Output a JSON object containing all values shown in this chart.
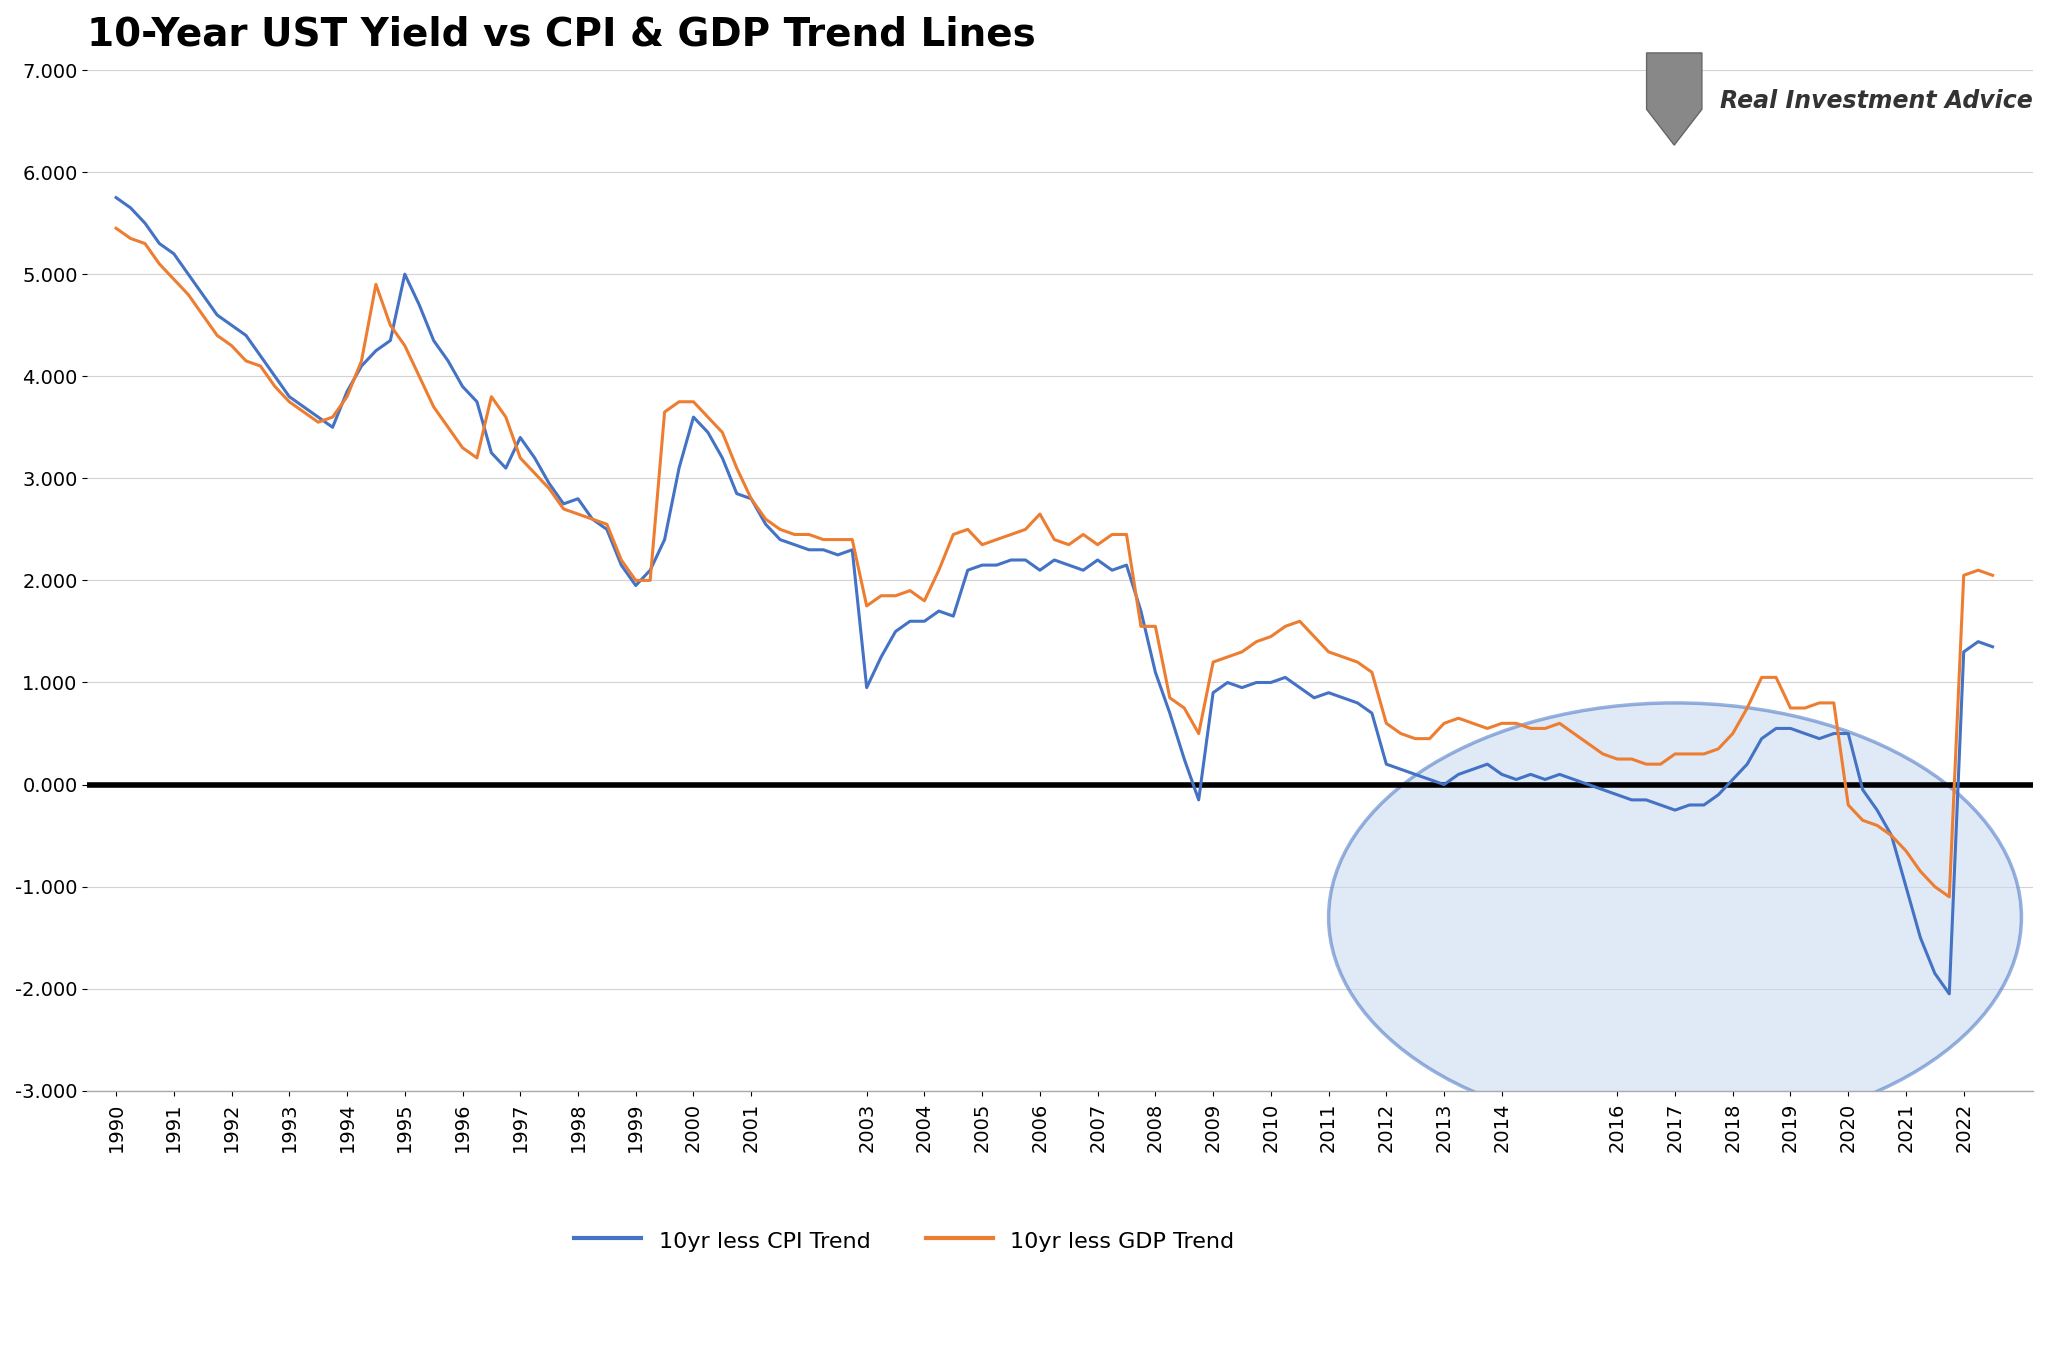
{
  "title": "10-Year UST Yield vs CPI & GDP Trend Lines",
  "legend_cpi": "10yr less CPI Trend",
  "legend_gdp": "10yr less GDP Trend",
  "color_cpi": "#4472C4",
  "color_gdp": "#ED7D31",
  "color_zero_line": "#000000",
  "background_color": "#FFFFFF",
  "grid_color": "#D3D3D3",
  "ylim": [
    -3.0,
    7.0
  ],
  "yticks": [
    -3.0,
    -2.0,
    -1.0,
    0.0,
    1.0,
    2.0,
    3.0,
    4.0,
    5.0,
    6.0,
    7.0
  ],
  "ellipse_color": "#C8D8F0",
  "ellipse_edge": "#4472C4",
  "xtick_labels": [
    "1990",
    "1991",
    "1992",
    "1993",
    "1994",
    "1995",
    "1996",
    "1997",
    "1998",
    "1999",
    "2000",
    "2001",
    "2003",
    "2004",
    "2005",
    "2006",
    "2007",
    "2008",
    "2009",
    "2010",
    "2011",
    "2012",
    "2013",
    "2014",
    "2016",
    "2017",
    "2018",
    "2019",
    "2020",
    "2021",
    "2022"
  ],
  "xtick_values": [
    1990,
    1991,
    1992,
    1993,
    1994,
    1995,
    1996,
    1997,
    1998,
    1999,
    2000,
    2001,
    2003,
    2004,
    2005,
    2006,
    2007,
    2008,
    2009,
    2010,
    2011,
    2012,
    2013,
    2014,
    2016,
    2017,
    2018,
    2019,
    2020,
    2021,
    2022
  ],
  "cpi_x": [
    1990.0,
    1990.25,
    1990.5,
    1990.75,
    1991.0,
    1991.25,
    1991.5,
    1991.75,
    1992.0,
    1992.25,
    1992.5,
    1992.75,
    1993.0,
    1993.25,
    1993.5,
    1993.75,
    1994.0,
    1994.25,
    1994.5,
    1994.75,
    1995.0,
    1995.25,
    1995.5,
    1995.75,
    1996.0,
    1996.25,
    1996.5,
    1996.75,
    1997.0,
    1997.25,
    1997.5,
    1997.75,
    1998.0,
    1998.25,
    1998.5,
    1998.75,
    1999.0,
    1999.25,
    1999.5,
    1999.75,
    2000.0,
    2000.25,
    2000.5,
    2000.75,
    2001.0,
    2001.25,
    2001.5,
    2001.75,
    2002.0,
    2002.25,
    2002.5,
    2002.75,
    2003.0,
    2003.25,
    2003.5,
    2003.75,
    2004.0,
    2004.25,
    2004.5,
    2004.75,
    2005.0,
    2005.25,
    2005.5,
    2005.75,
    2006.0,
    2006.25,
    2006.5,
    2006.75,
    2007.0,
    2007.25,
    2007.5,
    2007.75,
    2008.0,
    2008.25,
    2008.5,
    2008.75,
    2009.0,
    2009.25,
    2009.5,
    2009.75,
    2010.0,
    2010.25,
    2010.5,
    2010.75,
    2011.0,
    2011.25,
    2011.5,
    2011.75,
    2012.0,
    2012.25,
    2012.5,
    2012.75,
    2013.0,
    2013.25,
    2013.5,
    2013.75,
    2014.0,
    2014.25,
    2014.5,
    2014.75,
    2015.0,
    2015.25,
    2015.5,
    2015.75,
    2016.0,
    2016.25,
    2016.5,
    2016.75,
    2017.0,
    2017.25,
    2017.5,
    2017.75,
    2018.0,
    2018.25,
    2018.5,
    2018.75,
    2019.0,
    2019.25,
    2019.5,
    2019.75,
    2020.0,
    2020.25,
    2020.5,
    2020.75,
    2021.0,
    2021.25,
    2021.5,
    2021.75,
    2022.0,
    2022.25,
    2022.5
  ],
  "cpi_y": [
    5.75,
    5.65,
    5.5,
    5.3,
    5.2,
    5.0,
    4.8,
    4.6,
    4.5,
    4.4,
    4.2,
    4.0,
    3.8,
    3.7,
    3.6,
    3.5,
    3.85,
    4.1,
    4.25,
    4.35,
    5.0,
    4.7,
    4.35,
    4.15,
    3.9,
    3.75,
    3.25,
    3.1,
    3.4,
    3.2,
    2.95,
    2.75,
    2.8,
    2.6,
    2.5,
    2.15,
    1.95,
    2.1,
    2.4,
    3.1,
    3.6,
    3.45,
    3.2,
    2.85,
    2.8,
    2.55,
    2.4,
    2.35,
    2.3,
    2.3,
    2.25,
    2.3,
    0.95,
    1.25,
    1.5,
    1.6,
    1.6,
    1.7,
    1.65,
    2.1,
    2.15,
    2.15,
    2.2,
    2.2,
    2.1,
    2.2,
    2.15,
    2.1,
    2.2,
    2.1,
    2.15,
    1.7,
    1.1,
    0.7,
    0.25,
    -0.15,
    0.9,
    1.0,
    0.95,
    1.0,
    1.0,
    1.05,
    0.95,
    0.85,
    0.9,
    0.85,
    0.8,
    0.7,
    0.2,
    0.15,
    0.1,
    0.05,
    0.0,
    0.1,
    0.15,
    0.2,
    0.1,
    0.05,
    0.1,
    0.05,
    0.1,
    0.05,
    0.0,
    -0.05,
    -0.1,
    -0.15,
    -0.15,
    -0.2,
    -0.25,
    -0.2,
    -0.2,
    -0.1,
    0.05,
    0.2,
    0.45,
    0.55,
    0.55,
    0.5,
    0.45,
    0.5,
    0.5,
    -0.05,
    -0.25,
    -0.5,
    -1.0,
    -1.5,
    -1.85,
    -2.05,
    1.3,
    1.4,
    1.35
  ],
  "gdp_x": [
    1990.0,
    1990.25,
    1990.5,
    1990.75,
    1991.0,
    1991.25,
    1991.5,
    1991.75,
    1992.0,
    1992.25,
    1992.5,
    1992.75,
    1993.0,
    1993.25,
    1993.5,
    1993.75,
    1994.0,
    1994.25,
    1994.5,
    1994.75,
    1995.0,
    1995.25,
    1995.5,
    1995.75,
    1996.0,
    1996.25,
    1996.5,
    1996.75,
    1997.0,
    1997.25,
    1997.5,
    1997.75,
    1998.0,
    1998.25,
    1998.5,
    1998.75,
    1999.0,
    1999.25,
    1999.5,
    1999.75,
    2000.0,
    2000.25,
    2000.5,
    2000.75,
    2001.0,
    2001.25,
    2001.5,
    2001.75,
    2002.0,
    2002.25,
    2002.5,
    2002.75,
    2003.0,
    2003.25,
    2003.5,
    2003.75,
    2004.0,
    2004.25,
    2004.5,
    2004.75,
    2005.0,
    2005.25,
    2005.5,
    2005.75,
    2006.0,
    2006.25,
    2006.5,
    2006.75,
    2007.0,
    2007.25,
    2007.5,
    2007.75,
    2008.0,
    2008.25,
    2008.5,
    2008.75,
    2009.0,
    2009.25,
    2009.5,
    2009.75,
    2010.0,
    2010.25,
    2010.5,
    2010.75,
    2011.0,
    2011.25,
    2011.5,
    2011.75,
    2012.0,
    2012.25,
    2012.5,
    2012.75,
    2013.0,
    2013.25,
    2013.5,
    2013.75,
    2014.0,
    2014.25,
    2014.5,
    2014.75,
    2015.0,
    2015.25,
    2015.5,
    2015.75,
    2016.0,
    2016.25,
    2016.5,
    2016.75,
    2017.0,
    2017.25,
    2017.5,
    2017.75,
    2018.0,
    2018.25,
    2018.5,
    2018.75,
    2019.0,
    2019.25,
    2019.5,
    2019.75,
    2020.0,
    2020.25,
    2020.5,
    2020.75,
    2021.0,
    2021.25,
    2021.5,
    2021.75,
    2022.0,
    2022.25,
    2022.5
  ],
  "gdp_y": [
    5.45,
    5.35,
    5.3,
    5.1,
    4.95,
    4.8,
    4.6,
    4.4,
    4.3,
    4.15,
    4.1,
    3.9,
    3.75,
    3.65,
    3.55,
    3.6,
    3.8,
    4.15,
    4.9,
    4.5,
    4.3,
    4.0,
    3.7,
    3.5,
    3.3,
    3.2,
    3.8,
    3.6,
    3.2,
    3.05,
    2.9,
    2.7,
    2.65,
    2.6,
    2.55,
    2.2,
    2.0,
    2.0,
    3.65,
    3.75,
    3.75,
    3.6,
    3.45,
    3.1,
    2.8,
    2.6,
    2.5,
    2.45,
    2.45,
    2.4,
    2.4,
    2.4,
    1.75,
    1.85,
    1.85,
    1.9,
    1.8,
    2.1,
    2.45,
    2.5,
    2.35,
    2.4,
    2.45,
    2.5,
    2.65,
    2.4,
    2.35,
    2.45,
    2.35,
    2.45,
    2.45,
    1.55,
    1.55,
    0.85,
    0.75,
    0.5,
    1.2,
    1.25,
    1.3,
    1.4,
    1.45,
    1.55,
    1.6,
    1.45,
    1.3,
    1.25,
    1.2,
    1.1,
    0.6,
    0.5,
    0.45,
    0.45,
    0.6,
    0.65,
    0.6,
    0.55,
    0.6,
    0.6,
    0.55,
    0.55,
    0.6,
    0.5,
    0.4,
    0.3,
    0.25,
    0.25,
    0.2,
    0.2,
    0.3,
    0.3,
    0.3,
    0.35,
    0.5,
    0.75,
    1.05,
    1.05,
    0.75,
    0.75,
    0.8,
    0.8,
    -0.2,
    -0.35,
    -0.4,
    -0.5,
    -0.65,
    -0.85,
    -1.0,
    -1.1,
    2.05,
    2.1,
    2.05
  ]
}
